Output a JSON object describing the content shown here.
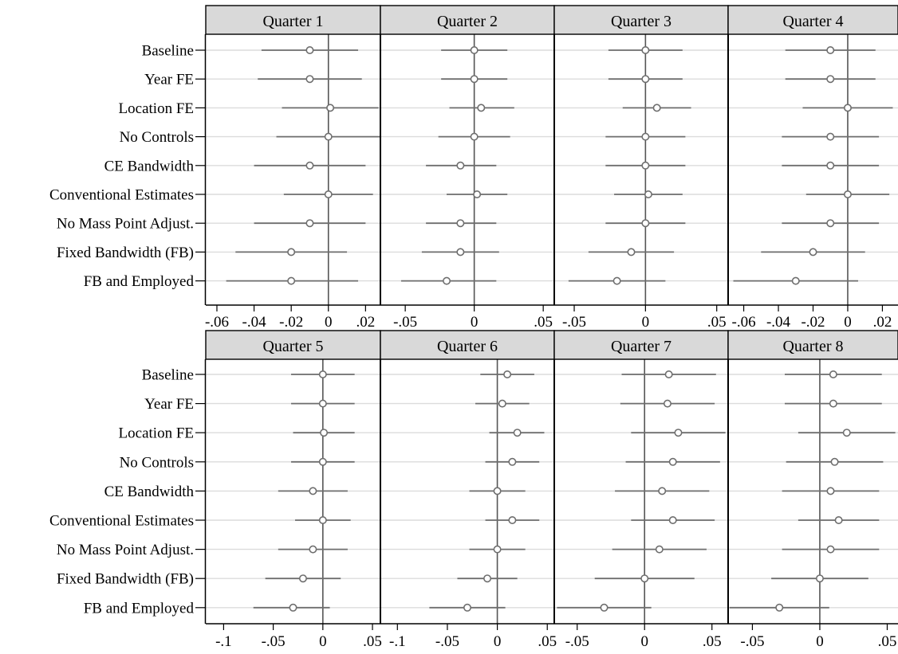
{
  "chart_data": {
    "type": "coefficient_plot",
    "layout": "2 rows x 4 panels, shared specification labels per row",
    "specifications": [
      "Baseline",
      "Year FE",
      "Location FE",
      "No Controls",
      "CE Bandwidth",
      "Conventional Estimates",
      "No Mass Point Adjust.",
      "Fixed Bandwidth (FB)",
      "FB and Employed"
    ],
    "marker": "hollow circle",
    "reference_line": 0,
    "gridlines": "horizontal at each specification",
    "colors": {
      "estimate": "#6e6e6e",
      "reference_line": "#555555",
      "grid": "#dcdcdc",
      "strip_fill": "#d9d9d9",
      "frame": "#000000"
    },
    "panels": [
      {
        "title": "Quarter 1",
        "xlim": [
          -0.066,
          0.028
        ],
        "xticks": [
          -0.06,
          -0.04,
          -0.02,
          0,
          0.02
        ],
        "xtick_labels": [
          "-.06",
          "-.04",
          "-.02",
          "0",
          ".02"
        ],
        "estimates": [
          -0.01,
          -0.01,
          0.001,
          0.0,
          -0.01,
          0.0,
          -0.01,
          -0.02,
          -0.02
        ],
        "ci_low": [
          -0.036,
          -0.038,
          -0.025,
          -0.028,
          -0.04,
          -0.024,
          -0.04,
          -0.05,
          -0.055
        ],
        "ci_high": [
          0.016,
          0.018,
          0.027,
          0.028,
          0.02,
          0.024,
          0.02,
          0.01,
          0.016
        ]
      },
      {
        "title": "Quarter 2",
        "xlim": [
          -0.068,
          0.058
        ],
        "xticks": [
          -0.05,
          0,
          0.05
        ],
        "xtick_labels": [
          "-.05",
          "0",
          ".05"
        ],
        "estimates": [
          0.0,
          0.0,
          0.005,
          0.0,
          -0.01,
          0.002,
          -0.01,
          -0.01,
          -0.02
        ],
        "ci_low": [
          -0.024,
          -0.024,
          -0.018,
          -0.026,
          -0.035,
          -0.02,
          -0.035,
          -0.038,
          -0.053
        ],
        "ci_high": [
          0.024,
          0.024,
          0.029,
          0.026,
          0.016,
          0.024,
          0.016,
          0.018,
          0.016
        ]
      },
      {
        "title": "Quarter 3",
        "xlim": [
          -0.064,
          0.058
        ],
        "xticks": [
          -0.05,
          0,
          0.05
        ],
        "xtick_labels": [
          "-.05",
          "0",
          ".05"
        ],
        "estimates": [
          0.0,
          0.0,
          0.008,
          0.0,
          0.0,
          0.002,
          0.0,
          -0.01,
          -0.02
        ],
        "ci_low": [
          -0.026,
          -0.026,
          -0.016,
          -0.028,
          -0.028,
          -0.022,
          -0.028,
          -0.04,
          -0.054
        ],
        "ci_high": [
          0.026,
          0.026,
          0.032,
          0.028,
          0.028,
          0.026,
          0.028,
          0.02,
          0.014
        ]
      },
      {
        "title": "Quarter 4",
        "xlim": [
          -0.069,
          0.029
        ],
        "xticks": [
          -0.06,
          -0.04,
          -0.02,
          0,
          0.02
        ],
        "xtick_labels": [
          "-.06",
          "-.04",
          "-.02",
          "0",
          ".02"
        ],
        "estimates": [
          -0.01,
          -0.01,
          0.0,
          -0.01,
          -0.01,
          0.0,
          -0.01,
          -0.02,
          -0.03
        ],
        "ci_low": [
          -0.036,
          -0.036,
          -0.026,
          -0.038,
          -0.038,
          -0.024,
          -0.038,
          -0.05,
          -0.066
        ],
        "ci_high": [
          0.016,
          0.016,
          0.026,
          0.018,
          0.018,
          0.024,
          0.018,
          0.01,
          0.006
        ]
      },
      {
        "title": "Quarter 5",
        "xlim": [
          -0.118,
          0.058
        ],
        "xticks": [
          -0.1,
          -0.05,
          0,
          0.05
        ],
        "xtick_labels": [
          "-.1",
          "-.05",
          "0",
          ".05"
        ],
        "estimates": [
          0.0,
          0.0,
          0.001,
          0.0,
          -0.01,
          0.0,
          -0.01,
          -0.02,
          -0.03
        ],
        "ci_low": [
          -0.032,
          -0.032,
          -0.03,
          -0.032,
          -0.045,
          -0.028,
          -0.045,
          -0.058,
          -0.07
        ],
        "ci_high": [
          0.032,
          0.032,
          0.032,
          0.032,
          0.025,
          0.028,
          0.025,
          0.018,
          0.007
        ]
      },
      {
        "title": "Quarter 6",
        "xlim": [
          -0.117,
          0.057
        ],
        "xticks": [
          -0.1,
          -0.05,
          0,
          0.05
        ],
        "xtick_labels": [
          "-.1",
          "-.05",
          "0",
          ".05"
        ],
        "estimates": [
          0.01,
          0.005,
          0.02,
          0.015,
          0.0,
          0.015,
          0.0,
          -0.01,
          -0.03
        ],
        "ci_low": [
          -0.017,
          -0.022,
          -0.008,
          -0.012,
          -0.028,
          -0.012,
          -0.028,
          -0.04,
          -0.068
        ],
        "ci_high": [
          0.037,
          0.032,
          0.047,
          0.042,
          0.028,
          0.042,
          0.028,
          0.02,
          0.008
        ]
      },
      {
        "title": "Quarter 7",
        "xlim": [
          -0.067,
          0.062
        ],
        "xticks": [
          -0.05,
          0,
          0.05
        ],
        "xtick_labels": [
          "-.05",
          "0",
          ".05"
        ],
        "estimates": [
          0.018,
          0.017,
          0.025,
          0.021,
          0.013,
          0.021,
          0.011,
          0.0,
          -0.03
        ],
        "ci_low": [
          -0.017,
          -0.018,
          -0.01,
          -0.014,
          -0.022,
          -0.01,
          -0.024,
          -0.037,
          -0.065
        ],
        "ci_high": [
          0.053,
          0.052,
          0.06,
          0.056,
          0.048,
          0.052,
          0.046,
          0.037,
          0.005
        ]
      },
      {
        "title": "Quarter 8",
        "xlim": [
          -0.068,
          0.058
        ],
        "xticks": [
          -0.05,
          0,
          0.05
        ],
        "xtick_labels": [
          "-.05",
          "0",
          ".05"
        ],
        "estimates": [
          0.01,
          0.01,
          0.02,
          0.011,
          0.008,
          0.014,
          0.008,
          0.0,
          -0.03
        ],
        "ci_low": [
          -0.026,
          -0.026,
          -0.016,
          -0.025,
          -0.028,
          -0.016,
          -0.028,
          -0.036,
          -0.067
        ],
        "ci_high": [
          0.046,
          0.046,
          0.056,
          0.047,
          0.044,
          0.044,
          0.044,
          0.036,
          0.007
        ]
      }
    ]
  }
}
